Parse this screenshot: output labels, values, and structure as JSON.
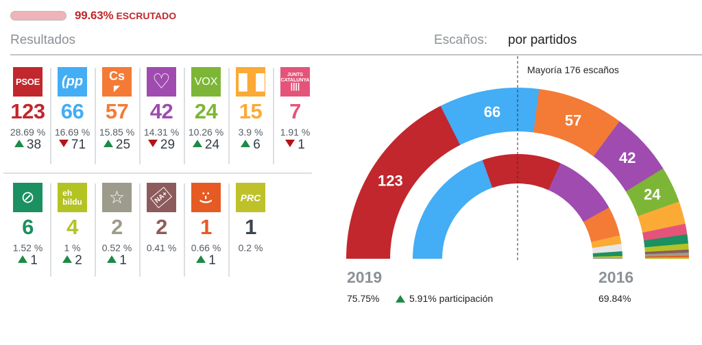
{
  "progress": {
    "percent": 99.63,
    "percent_label": "99.63%",
    "label": "ESCRUTADO"
  },
  "header": {
    "results_title": "Resultados",
    "seats_label": "Escaños:",
    "seats_mode": "por partidos"
  },
  "parties_row1": [
    {
      "name": "PSOE",
      "logo_text": "PSOE",
      "color": "#c1272d",
      "seats": "123",
      "pct": "28.69 %",
      "trend": "up",
      "diff": "38"
    },
    {
      "name": "PP",
      "logo_text": "pp",
      "color": "#43adf5",
      "seats": "66",
      "pct": "16.69 %",
      "trend": "down",
      "diff": "71"
    },
    {
      "name": "Cs",
      "logo_text": "Cs",
      "color": "#f47b35",
      "seats": "57",
      "pct": "15.85 %",
      "trend": "up",
      "diff": "25"
    },
    {
      "name": "Unidas Podemos",
      "logo_text": "♡",
      "color": "#a04bb0",
      "seats": "42",
      "pct": "14.31 %",
      "trend": "down",
      "diff": "29"
    },
    {
      "name": "VOX",
      "logo_text": "VOX",
      "color": "#7db636",
      "seats": "24",
      "pct": "10.26 %",
      "trend": "up",
      "diff": "24"
    },
    {
      "name": "ERC",
      "logo_text": "ERC",
      "color": "#fbaa35",
      "seats": "15",
      "pct": "3.9 %",
      "trend": "up",
      "diff": "6"
    },
    {
      "name": "Junts per Catalunya",
      "logo_text": "JUNTS PER CATALUNYA",
      "color": "#e4547a",
      "seats": "7",
      "pct": "1.91 %",
      "trend": "down",
      "diff": "1"
    }
  ],
  "parties_row2": [
    {
      "name": "PNV",
      "logo_text": "EAJ",
      "color": "#1b9060",
      "seats": "6",
      "pct": "1.52 %",
      "trend": "up",
      "diff": "1"
    },
    {
      "name": "EH Bildu",
      "logo_text": "eh bildu",
      "color": "#b3c322",
      "seats": "4",
      "pct": "1 %",
      "trend": "up",
      "diff": "2"
    },
    {
      "name": "Coalición Canaria",
      "logo_text": "coalición canaria",
      "color": "#9d9b8c",
      "seats": "2",
      "pct": "0.52 %",
      "trend": "up",
      "diff": "1"
    },
    {
      "name": "NA+",
      "logo_text": "NA+",
      "color": "#8d5b5b",
      "seats": "2",
      "pct": "0.41 %",
      "trend": "",
      "diff": ""
    },
    {
      "name": "Compromís",
      "logo_text": ":-)",
      "color": "#e65a24",
      "seats": "1",
      "pct": "0.66 %",
      "trend": "up",
      "diff": "1"
    },
    {
      "name": "PRC",
      "logo_text": "PRC",
      "color": "#bec12a",
      "seats": "1",
      "pct": "0.2 %",
      "trend": "",
      "diff": ""
    }
  ],
  "majority_label": "Mayoría 176 escaños",
  "years": {
    "current": "2019",
    "previous": "2016",
    "current_turnout": "75.75%",
    "turnout_diff": "5.91% participación",
    "turnout_trend": "up",
    "previous_turnout": "69.84%"
  },
  "chart_data": {
    "type": "pie",
    "subtype": "double-semicircle-parliament",
    "total_seats": 350,
    "majority": 176,
    "series": [
      {
        "name": "2019",
        "ring": "outer",
        "segments": [
          {
            "party": "PSOE",
            "seats": 123,
            "color": "#c1272d",
            "label": "123"
          },
          {
            "party": "PP",
            "seats": 66,
            "color": "#43adf5",
            "label": "66"
          },
          {
            "party": "Cs",
            "seats": 57,
            "color": "#f47b35",
            "label": "57"
          },
          {
            "party": "Unidas Podemos",
            "seats": 42,
            "color": "#a04bb0",
            "label": "42"
          },
          {
            "party": "VOX",
            "seats": 24,
            "color": "#7db636",
            "label": "24"
          },
          {
            "party": "ERC",
            "seats": 15,
            "color": "#fbaa35",
            "label": ""
          },
          {
            "party": "JxCat",
            "seats": 7,
            "color": "#e4547a",
            "label": ""
          },
          {
            "party": "PNV",
            "seats": 6,
            "color": "#1b9060",
            "label": ""
          },
          {
            "party": "EH Bildu",
            "seats": 4,
            "color": "#b3c322",
            "label": ""
          },
          {
            "party": "NA+",
            "seats": 2,
            "color": "#8d5b5b",
            "label": ""
          },
          {
            "party": "CC",
            "seats": 2,
            "color": "#9d9b8c",
            "label": ""
          },
          {
            "party": "Compromís",
            "seats": 1,
            "color": "#e65a24",
            "label": ""
          },
          {
            "party": "PRC",
            "seats": 1,
            "color": "#bec12a",
            "label": ""
          }
        ]
      },
      {
        "name": "2016",
        "ring": "inner",
        "segments": [
          {
            "party": "PP",
            "seats": 137,
            "color": "#43adf5"
          },
          {
            "party": "PSOE",
            "seats": 85,
            "color": "#c1272d"
          },
          {
            "party": "Unidas Podemos",
            "seats": 71,
            "color": "#a04bb0"
          },
          {
            "party": "Cs",
            "seats": 32,
            "color": "#f47b35"
          },
          {
            "party": "ERC",
            "seats": 9,
            "color": "#fbaa35"
          },
          {
            "party": "CDC",
            "seats": 8,
            "color": "#e6e6e6"
          },
          {
            "party": "PNV",
            "seats": 5,
            "color": "#1b9060"
          },
          {
            "party": "EH Bildu",
            "seats": 2,
            "color": "#b3c322"
          },
          {
            "party": "CC",
            "seats": 1,
            "color": "#9d9b8c"
          }
        ]
      }
    ]
  }
}
